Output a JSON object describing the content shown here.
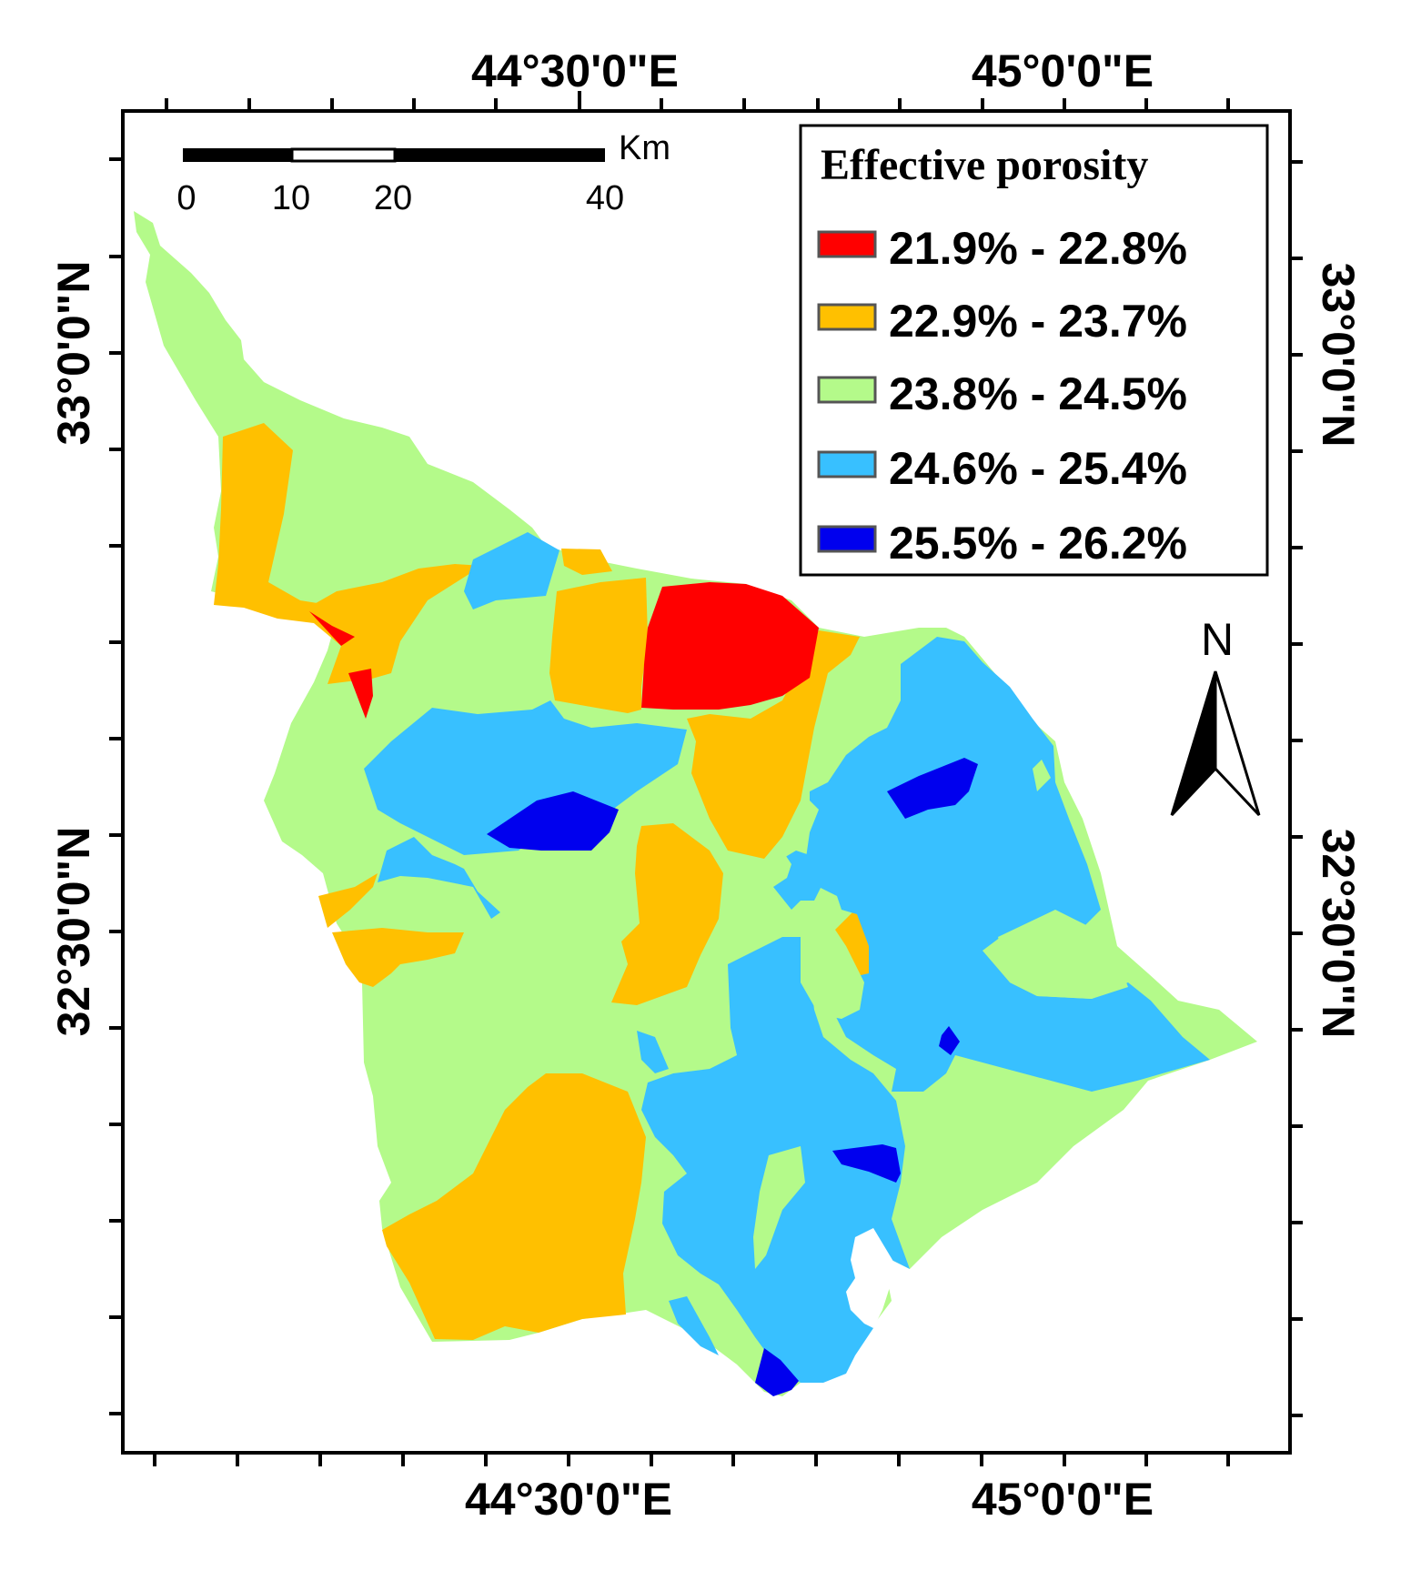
{
  "map": {
    "coordinates": {
      "top_lon_1": "44°30'0\"E",
      "top_lon_2": "45°0'0\"E",
      "bottom_lon_1": "44°30'0\"E",
      "bottom_lon_2": "45°0'0\"E",
      "left_lat_1": "33°0'0\"N",
      "left_lat_2": "32°30'0\"N",
      "right_lat_1": "33°0'0\"N",
      "right_lat_2": "32°30'0\"N"
    },
    "scale_bar": {
      "unit": "Km",
      "labels": [
        "0",
        "10",
        "20",
        "40"
      ]
    },
    "north_arrow": {
      "label": "N"
    },
    "legend": {
      "title": "Effective porosity",
      "classes": [
        {
          "label": "21.9% - 22.8%",
          "color": "#ff0000"
        },
        {
          "label": "22.9% - 23.7%",
          "color": "#ffc000"
        },
        {
          "label": "23.8% - 24.5%",
          "color": "#b4fa8a"
        },
        {
          "label": "24.6% - 25.4%",
          "color": "#38c0ff"
        },
        {
          "label": "25.5% - 26.2%",
          "color": "#0000ee"
        }
      ]
    }
  }
}
